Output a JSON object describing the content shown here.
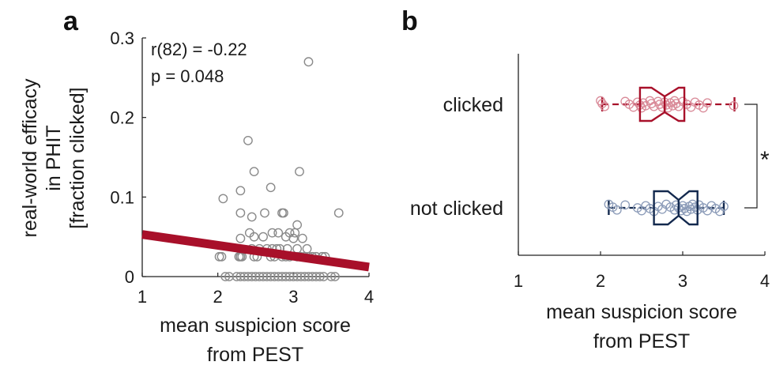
{
  "panels": {
    "a": {
      "letter": "a",
      "ylabel_lines": [
        "real-world efficacy",
        "in PHIT",
        "[fraction clicked]"
      ],
      "xlabel_lines": [
        "mean suspicion score",
        "from PEST"
      ],
      "annotation_lines": [
        "r(82) = -0.22",
        "p = 0.048"
      ],
      "x_ticks": [
        "1",
        "2",
        "3",
        "4"
      ],
      "y_ticks": [
        "0",
        "0.1",
        "0.2",
        "0.3"
      ]
    },
    "b": {
      "letter": "b",
      "xlabel_lines": [
        "mean suspicion score",
        "from PEST"
      ],
      "x_ticks": [
        "1",
        "2",
        "3",
        "4"
      ],
      "categories": [
        "clicked",
        "not clicked"
      ],
      "significance": "*"
    }
  },
  "colors": {
    "scatter_points": "#8a8a8a",
    "regression_line": "#a8102a",
    "clicked_box": "#a8102a",
    "clicked_points": "#d98a98",
    "not_clicked_box": "#13294e",
    "not_clicked_points": "#8b9bb8",
    "axis": "#222222"
  },
  "chart_data": [
    {
      "type": "scatter",
      "xlabel": "mean suspicion score from PEST",
      "ylabel": "real-world efficacy in PHIT [fraction clicked]",
      "xlim": [
        1,
        4
      ],
      "ylim": [
        0,
        0.3
      ],
      "annotation": "r(82) = -0.22, p = 0.048",
      "x": [
        2.1,
        2.15,
        2.25,
        2.3,
        2.35,
        2.4,
        2.45,
        2.5,
        2.55,
        2.6,
        2.65,
        2.7,
        2.75,
        2.8,
        2.85,
        2.9,
        2.95,
        3.0,
        3.05,
        3.1,
        3.15,
        3.2,
        3.25,
        3.3,
        3.35,
        3.4,
        3.5,
        3.55,
        2.02,
        2.05,
        2.28,
        2.3,
        2.32,
        2.48,
        2.52,
        2.7,
        2.75,
        2.85,
        2.9,
        2.95,
        3.05,
        3.1,
        3.15,
        3.2,
        3.25,
        3.3,
        3.38,
        3.42,
        2.45,
        2.55,
        2.65,
        2.72,
        2.78,
        2.82,
        2.92,
        3.05,
        3.18,
        2.3,
        2.42,
        2.48,
        2.6,
        2.72,
        2.8,
        2.9,
        2.95,
        3.0,
        3.02,
        3.12,
        2.07,
        2.3,
        2.45,
        2.62,
        2.85,
        2.87,
        3.05,
        3.6,
        2.3,
        2.48,
        2.7,
        3.08,
        2.4,
        3.2
      ],
      "y": [
        0,
        0,
        0,
        0,
        0,
        0,
        0,
        0,
        0,
        0,
        0,
        0,
        0,
        0,
        0,
        0,
        0,
        0,
        0,
        0,
        0,
        0,
        0,
        0,
        0,
        0,
        0,
        0,
        0.025,
        0.025,
        0.025,
        0.025,
        0.025,
        0.025,
        0.025,
        0.025,
        0.025,
        0.025,
        0.025,
        0.025,
        0.025,
        0.025,
        0.025,
        0.025,
        0.025,
        0.025,
        0.025,
        0.025,
        0.035,
        0.035,
        0.035,
        0.035,
        0.035,
        0.035,
        0.035,
        0.035,
        0.035,
        0.048,
        0.055,
        0.05,
        0.05,
        0.055,
        0.055,
        0.05,
        0.055,
        0.048,
        0.055,
        0.048,
        0.098,
        0.08,
        0.075,
        0.08,
        0.08,
        0.08,
        0.065,
        0.08,
        0.108,
        0.132,
        0.112,
        0.132,
        0.171,
        0.27
      ],
      "regression_line": {
        "x": [
          1,
          4
        ],
        "y": [
          0.053,
          0.012
        ]
      }
    },
    {
      "type": "box",
      "xlabel": "mean suspicion score from PEST",
      "xlim": [
        1,
        4
      ],
      "categories": [
        "clicked",
        "not clicked"
      ],
      "series": [
        {
          "name": "clicked",
          "whisker_low": 2.02,
          "q1": 2.48,
          "median": 2.78,
          "q3": 3.02,
          "whisker_high": 3.63,
          "notch_low": 2.62,
          "notch_high": 2.95,
          "points": [
            2.0,
            2.02,
            2.05,
            2.3,
            2.35,
            2.4,
            2.45,
            2.48,
            2.5,
            2.52,
            2.55,
            2.6,
            2.62,
            2.65,
            2.7,
            2.72,
            2.75,
            2.78,
            2.8,
            2.82,
            2.85,
            2.88,
            2.9,
            2.92,
            2.95,
            3.0,
            3.05,
            3.1,
            3.15,
            3.2,
            3.25,
            3.3,
            3.62
          ]
        },
        {
          "name": "not clicked",
          "whisker_low": 2.1,
          "q1": 2.65,
          "median": 2.95,
          "q3": 3.18,
          "whisker_high": 3.5,
          "notch_low": 2.82,
          "notch_high": 3.08,
          "points": [
            2.1,
            2.15,
            2.2,
            2.3,
            2.45,
            2.5,
            2.55,
            2.6,
            2.65,
            2.7,
            2.75,
            2.8,
            2.85,
            2.9,
            2.92,
            2.95,
            2.98,
            3.0,
            3.02,
            3.05,
            3.08,
            3.1,
            3.12,
            3.15,
            3.18,
            3.2,
            3.25,
            3.3,
            3.35,
            3.4,
            3.45,
            3.5
          ]
        }
      ],
      "significance": "*"
    }
  ]
}
